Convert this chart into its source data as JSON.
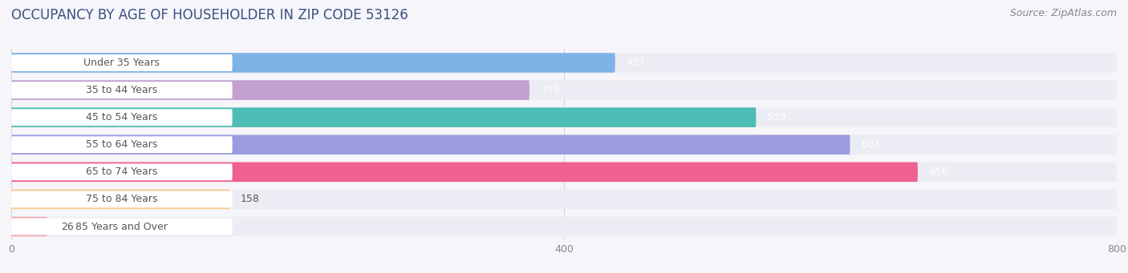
{
  "title": "OCCUPANCY BY AGE OF HOUSEHOLDER IN ZIP CODE 53126",
  "source": "Source: ZipAtlas.com",
  "categories": [
    "Under 35 Years",
    "35 to 44 Years",
    "45 to 54 Years",
    "55 to 64 Years",
    "65 to 74 Years",
    "75 to 84 Years",
    "85 Years and Over"
  ],
  "values": [
    437,
    375,
    539,
    607,
    656,
    158,
    26
  ],
  "bar_colors": [
    "#7EB3E8",
    "#C3A0D0",
    "#4DBDB5",
    "#9B9BE0",
    "#F06090",
    "#F9C98E",
    "#F5A8B0"
  ],
  "bar_bg_color": "#ECEDF4",
  "label_pill_color": "#FFFFFF",
  "xlim": [
    0,
    800
  ],
  "xticks": [
    0,
    400,
    800
  ],
  "title_fontsize": 12,
  "source_fontsize": 9,
  "label_fontsize": 9,
  "value_fontsize": 9,
  "background_color": "#F5F5FA",
  "bar_height": 0.72,
  "value_threshold": 100
}
